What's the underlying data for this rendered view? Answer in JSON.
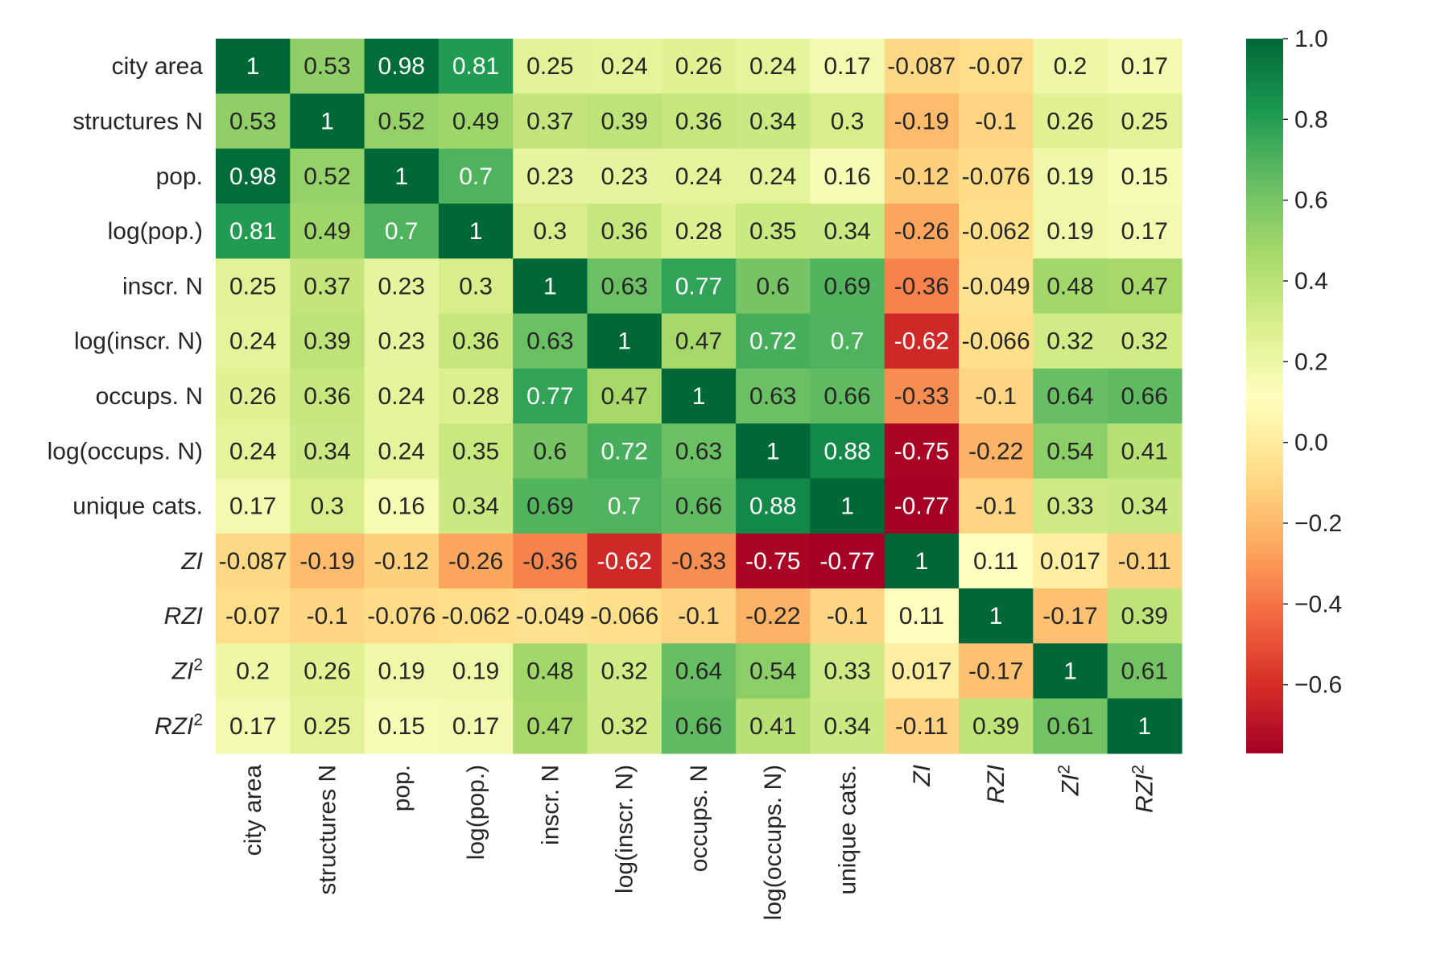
{
  "chart_data": {
    "type": "heatmap",
    "title": "",
    "xlabel": "",
    "ylabel": "",
    "colormap": "RdYlGn",
    "vmin": -0.77,
    "vmax": 1.0,
    "labels": [
      {
        "text": "city area",
        "italic": false,
        "sup": ""
      },
      {
        "text": "structures N",
        "italic": false,
        "sup": ""
      },
      {
        "text": "pop.",
        "italic": false,
        "sup": ""
      },
      {
        "text": "log(pop.)",
        "italic": false,
        "sup": ""
      },
      {
        "text": "inscr. N",
        "italic": false,
        "sup": ""
      },
      {
        "text": "log(inscr. N)",
        "italic": false,
        "sup": ""
      },
      {
        "text": "occups. N",
        "italic": false,
        "sup": ""
      },
      {
        "text": "log(occups. N)",
        "italic": false,
        "sup": ""
      },
      {
        "text": "unique cats.",
        "italic": false,
        "sup": ""
      },
      {
        "text": "ZI",
        "italic": true,
        "sup": ""
      },
      {
        "text": "RZI",
        "italic": true,
        "sup": ""
      },
      {
        "text": "ZI",
        "italic": true,
        "sup": "2"
      },
      {
        "text": "RZI",
        "italic": true,
        "sup": "2"
      }
    ],
    "values": [
      [
        "1",
        "0.53",
        "0.98",
        "0.81",
        "0.25",
        "0.24",
        "0.26",
        "0.24",
        "0.17",
        "-0.087",
        "-0.07",
        "0.2",
        "0.17"
      ],
      [
        "0.53",
        "1",
        "0.52",
        "0.49",
        "0.37",
        "0.39",
        "0.36",
        "0.34",
        "0.3",
        "-0.19",
        "-0.1",
        "0.26",
        "0.25"
      ],
      [
        "0.98",
        "0.52",
        "1",
        "0.7",
        "0.23",
        "0.23",
        "0.24",
        "0.24",
        "0.16",
        "-0.12",
        "-0.076",
        "0.19",
        "0.15"
      ],
      [
        "0.81",
        "0.49",
        "0.7",
        "1",
        "0.3",
        "0.36",
        "0.28",
        "0.35",
        "0.34",
        "-0.26",
        "-0.062",
        "0.19",
        "0.17"
      ],
      [
        "0.25",
        "0.37",
        "0.23",
        "0.3",
        "1",
        "0.63",
        "0.77",
        "0.6",
        "0.69",
        "-0.36",
        "-0.049",
        "0.48",
        "0.47"
      ],
      [
        "0.24",
        "0.39",
        "0.23",
        "0.36",
        "0.63",
        "1",
        "0.47",
        "0.72",
        "0.7",
        "-0.62",
        "-0.066",
        "0.32",
        "0.32"
      ],
      [
        "0.26",
        "0.36",
        "0.24",
        "0.28",
        "0.77",
        "0.47",
        "1",
        "0.63",
        "0.66",
        "-0.33",
        "-0.1",
        "0.64",
        "0.66"
      ],
      [
        "0.24",
        "0.34",
        "0.24",
        "0.35",
        "0.6",
        "0.72",
        "0.63",
        "1",
        "0.88",
        "-0.75",
        "-0.22",
        "0.54",
        "0.41"
      ],
      [
        "0.17",
        "0.3",
        "0.16",
        "0.34",
        "0.69",
        "0.7",
        "0.66",
        "0.88",
        "1",
        "-0.77",
        "-0.1",
        "0.33",
        "0.34"
      ],
      [
        "-0.087",
        "-0.19",
        "-0.12",
        "-0.26",
        "-0.36",
        "-0.62",
        "-0.33",
        "-0.75",
        "-0.77",
        "1",
        "0.11",
        "0.017",
        "-0.11"
      ],
      [
        "-0.07",
        "-0.1",
        "-0.076",
        "-0.062",
        "-0.049",
        "-0.066",
        "-0.1",
        "-0.22",
        "-0.1",
        "0.11",
        "1",
        "-0.17",
        "0.39"
      ],
      [
        "0.2",
        "0.26",
        "0.19",
        "0.19",
        "0.48",
        "0.32",
        "0.64",
        "0.54",
        "0.33",
        "0.017",
        "-0.17",
        "1",
        "0.61"
      ],
      [
        "0.17",
        "0.25",
        "0.15",
        "0.17",
        "0.47",
        "0.32",
        "0.66",
        "0.41",
        "0.34",
        "-0.11",
        "0.39",
        "0.61",
        "1"
      ]
    ],
    "colorbar": {
      "ticks": [
        1.0,
        0.8,
        0.6,
        0.4,
        0.2,
        0.0,
        -0.2,
        -0.4,
        -0.6
      ],
      "tick_labels": [
        "1.0",
        "0.8",
        "0.6",
        "0.4",
        "0.2",
        "0.0",
        "−0.2",
        "−0.4",
        "−0.6"
      ]
    },
    "grid": false
  }
}
